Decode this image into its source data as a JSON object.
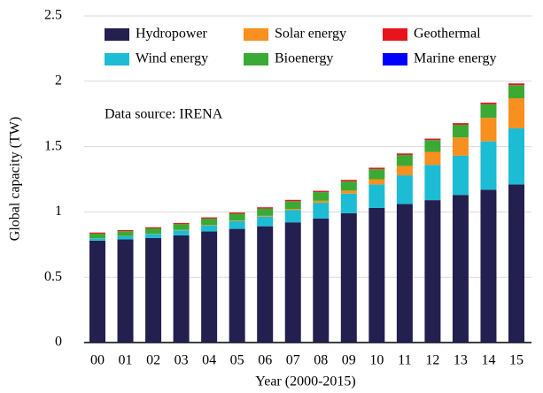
{
  "chart_data": {
    "type": "stacked_bar",
    "ylabel": "Global capacity (TW)",
    "xlabel": "Year (2000-2015)",
    "annotation": "Data source: IRENA",
    "categories": [
      "00",
      "01",
      "02",
      "03",
      "04",
      "05",
      "06",
      "07",
      "08",
      "09",
      "10",
      "11",
      "12",
      "13",
      "14",
      "15"
    ],
    "series": [
      {
        "name": "Hydropower",
        "color": "#231f4f",
        "values": [
          0.78,
          0.79,
          0.8,
          0.82,
          0.85,
          0.87,
          0.89,
          0.92,
          0.95,
          0.99,
          1.03,
          1.06,
          1.09,
          1.13,
          1.17,
          1.21
        ]
      },
      {
        "name": "Wind energy",
        "color": "#1cbcd4",
        "values": [
          0.017,
          0.024,
          0.031,
          0.039,
          0.047,
          0.059,
          0.074,
          0.093,
          0.12,
          0.15,
          0.18,
          0.22,
          0.27,
          0.3,
          0.37,
          0.43
        ]
      },
      {
        "name": "Solar energy",
        "color": "#f7901e",
        "values": [
          0.001,
          0.001,
          0.002,
          0.003,
          0.004,
          0.005,
          0.006,
          0.009,
          0.015,
          0.023,
          0.04,
          0.072,
          0.1,
          0.14,
          0.18,
          0.23
        ]
      },
      {
        "name": "Bioenergy",
        "color": "#3aaa35",
        "values": [
          0.036,
          0.038,
          0.041,
          0.044,
          0.048,
          0.052,
          0.056,
          0.06,
          0.066,
          0.071,
          0.077,
          0.084,
          0.09,
          0.097,
          0.104,
          0.1
        ]
      },
      {
        "name": "Geothermal",
        "color": "#e8141b",
        "values": [
          0.008,
          0.008,
          0.008,
          0.009,
          0.009,
          0.009,
          0.009,
          0.01,
          0.01,
          0.011,
          0.011,
          0.011,
          0.011,
          0.012,
          0.012,
          0.013
        ]
      },
      {
        "name": "Marine energy",
        "color": "#0000ff",
        "values": [
          0.0003,
          0.0003,
          0.0003,
          0.0003,
          0.0003,
          0.0003,
          0.0003,
          0.0003,
          0.0003,
          0.0003,
          0.0003,
          0.0005,
          0.0005,
          0.0005,
          0.0005,
          0.0005
        ]
      }
    ],
    "ylim": [
      0,
      2.5
    ],
    "yticks": [
      0,
      0.5,
      1,
      1.5,
      2,
      2.5
    ],
    "grid": true
  }
}
